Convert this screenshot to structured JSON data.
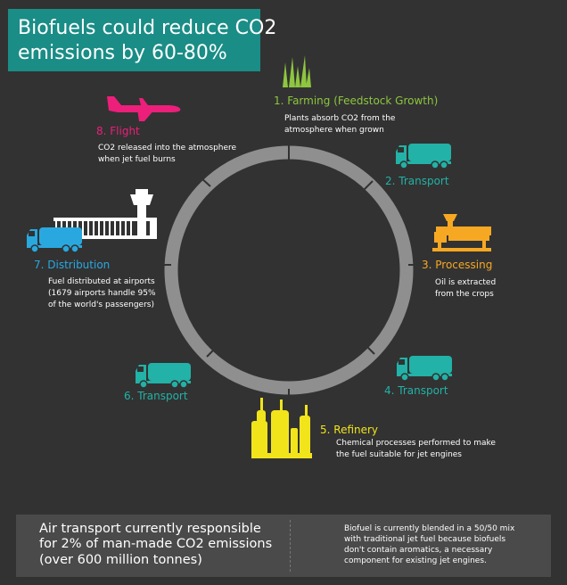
{
  "title": {
    "line1": "Biofuels could reduce CO2",
    "line2": "emissions by 60-80%"
  },
  "colors": {
    "teal": "#1a8d86",
    "green": "#8dc63f",
    "cyan": "#22b2a7",
    "orange": "#f7a823",
    "yellow": "#f1e41b",
    "blue": "#29a8e0",
    "pink": "#ec1f7b",
    "ring": "#8f8f8f"
  },
  "stages": {
    "farming": {
      "label": "1. Farming (Feedstock Growth)",
      "desc": [
        "Plants absorb CO2 from the",
        "atmosphere when grown"
      ]
    },
    "transport2": {
      "label": "2. Transport"
    },
    "processing": {
      "label": "3. Processing",
      "desc": [
        "Oil is extracted",
        "from the crops"
      ]
    },
    "transport4": {
      "label": "4. Transport"
    },
    "refinery": {
      "label": "5.  Refinery",
      "desc": [
        "Chemical processes performed to make",
        "the fuel suitable for jet engines"
      ]
    },
    "transport6": {
      "label": "6. Transport"
    },
    "distribution": {
      "label": "7. Distribution",
      "desc": [
        "Fuel distributed at airports",
        "(1679 airports handle 95%",
        "of the world's passengers)"
      ]
    },
    "flight": {
      "label": "8. Flight",
      "desc": [
        "CO2 released into the atmosphere",
        "when jet fuel burns"
      ]
    }
  },
  "icons": {
    "farming": "grass-icon",
    "transport": "truck-icon",
    "processing": "oil-press-icon",
    "refinery": "refinery-icon",
    "distribution": "airport-terminal-icon",
    "flight": "airplane-icon"
  },
  "footer": {
    "left": [
      "Air transport currently responsible",
      "for 2% of man-made CO2 emissions",
      "(over 600 million tonnes)"
    ],
    "right": [
      "Biofuel is currently blended in a 50/50 mix",
      "with traditional jet fuel because biofuels",
      "don't contain aromatics, a necessary",
      "component for existing jet engines."
    ]
  }
}
